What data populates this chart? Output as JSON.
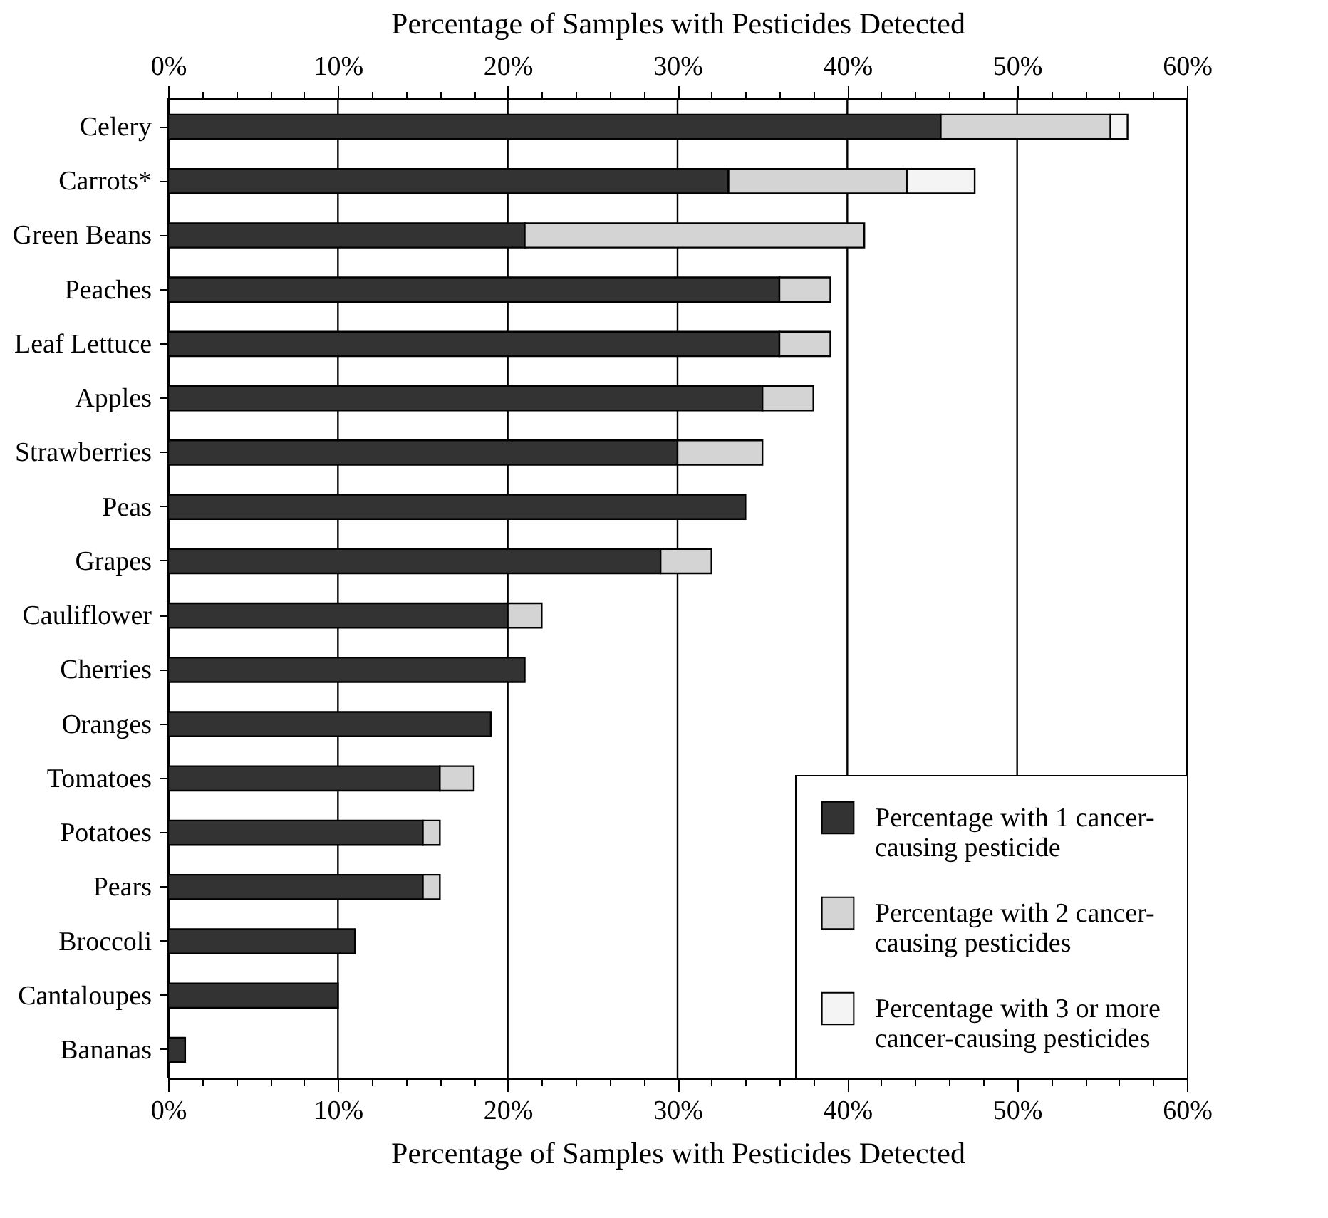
{
  "chart_data": {
    "type": "bar",
    "orientation": "horizontal",
    "stacked": true,
    "xlabel": "Percentage of Samples with Pesticides Detected",
    "x2label": "Percentage of Samples with Pesticides Detected",
    "categories": [
      "Celery",
      "Carrots*",
      "Green Beans",
      "Peaches",
      "Leaf Lettuce",
      "Apples",
      "Strawberries",
      "Peas",
      "Grapes",
      "Cauliflower",
      "Cherries",
      "Oranges",
      "Tomatoes",
      "Potatoes",
      "Pears",
      "Broccoli",
      "Cantaloupes",
      "Bananas"
    ],
    "series": [
      {
        "name": "Percentage with 1 cancer-causing pesticide",
        "color": "#333333",
        "values": [
          45.5,
          33,
          21,
          36,
          36,
          35,
          30,
          34,
          29,
          20,
          21,
          19,
          16,
          15,
          15,
          11,
          10,
          1
        ]
      },
      {
        "name": "Percentage with 2 cancer-causing pesticides",
        "color": "#d4d4d4",
        "values": [
          10,
          10.5,
          20,
          3,
          3,
          3,
          5,
          null,
          3,
          2,
          null,
          null,
          2,
          1,
          1,
          null,
          null,
          null
        ]
      },
      {
        "name": "Percentage with 3 or more cancer-causing pesticides",
        "color": "#f4f4f4",
        "values": [
          1,
          4,
          null,
          null,
          null,
          null,
          null,
          null,
          null,
          null,
          null,
          null,
          null,
          null,
          null,
          null,
          null,
          null
        ]
      }
    ],
    "xlim": [
      0,
      60
    ],
    "xticks": [
      {
        "value": 0,
        "label": "0%"
      },
      {
        "value": 2,
        "label": null
      },
      {
        "value": 4,
        "label": null
      },
      {
        "value": 6,
        "label": null
      },
      {
        "value": 8,
        "label": null
      },
      {
        "value": 10,
        "label": "10%"
      },
      {
        "value": 12,
        "label": null
      },
      {
        "value": 14,
        "label": null
      },
      {
        "value": 16,
        "label": null
      },
      {
        "value": 18,
        "label": null
      },
      {
        "value": 20,
        "label": "20%"
      },
      {
        "value": 22,
        "label": null
      },
      {
        "value": 24,
        "label": null
      },
      {
        "value": 26,
        "label": null
      },
      {
        "value": 28,
        "label": null
      },
      {
        "value": 30,
        "label": "30%"
      },
      {
        "value": 32,
        "label": null
      },
      {
        "value": 34,
        "label": null
      },
      {
        "value": 36,
        "label": null
      },
      {
        "value": 38,
        "label": null
      },
      {
        "value": 40,
        "label": "40%"
      },
      {
        "value": 42,
        "label": null
      },
      {
        "value": 44,
        "label": null
      },
      {
        "value": 46,
        "label": null
      },
      {
        "value": 48,
        "label": null
      },
      {
        "value": 50,
        "label": "50%"
      },
      {
        "value": 52,
        "label": null
      },
      {
        "value": 54,
        "label": null
      },
      {
        "value": 56,
        "label": null
      },
      {
        "value": 58,
        "label": null
      },
      {
        "value": 60,
        "label": "60%"
      }
    ],
    "x2lim": [
      0,
      60
    ],
    "x2ticks": [
      {
        "value": 0,
        "label": "0%"
      },
      {
        "value": 2,
        "label": null
      },
      {
        "value": 4,
        "label": null
      },
      {
        "value": 6,
        "label": null
      },
      {
        "value": 8,
        "label": null
      },
      {
        "value": 10,
        "label": "10%"
      },
      {
        "value": 12,
        "label": null
      },
      {
        "value": 14,
        "label": null
      },
      {
        "value": 16,
        "label": null
      },
      {
        "value": 18,
        "label": null
      },
      {
        "value": 20,
        "label": "20%"
      },
      {
        "value": 22,
        "label": null
      },
      {
        "value": 24,
        "label": null
      },
      {
        "value": 26,
        "label": null
      },
      {
        "value": 28,
        "label": null
      },
      {
        "value": 30,
        "label": "30%"
      },
      {
        "value": 32,
        "label": null
      },
      {
        "value": 34,
        "label": null
      },
      {
        "value": 36,
        "label": null
      },
      {
        "value": 38,
        "label": null
      },
      {
        "value": 40,
        "label": "40%"
      },
      {
        "value": 42,
        "label": null
      },
      {
        "value": 44,
        "label": null
      },
      {
        "value": 46,
        "label": null
      },
      {
        "value": 48,
        "label": null
      },
      {
        "value": 50,
        "label": "50%"
      },
      {
        "value": 52,
        "label": null
      },
      {
        "value": 54,
        "label": null
      },
      {
        "value": 56,
        "label": null
      },
      {
        "value": 58,
        "label": null
      },
      {
        "value": 60,
        "label": "60%"
      }
    ],
    "grid": "x",
    "legend": "bottom right"
  }
}
